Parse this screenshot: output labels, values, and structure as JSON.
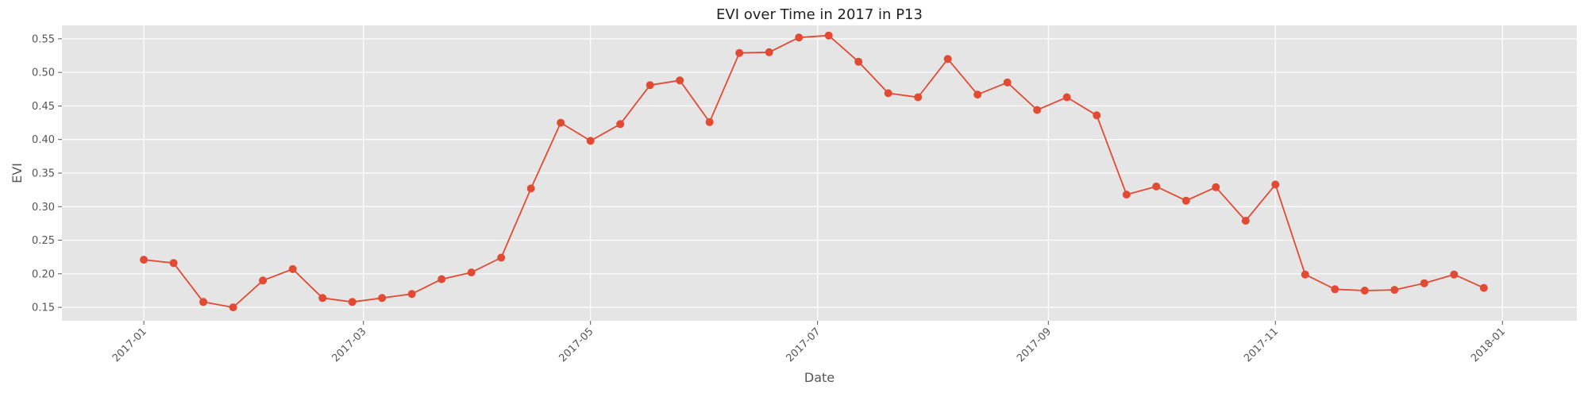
{
  "chart_data": {
    "type": "line",
    "title": "EVI over Time in 2017 in P13",
    "xlabel": "Date",
    "ylabel": "EVI",
    "xlim": [
      "2016-12-10",
      "2018-01-21"
    ],
    "ylim": [
      0.13,
      0.57
    ],
    "grid": true,
    "x_ticks": [
      "2017-01",
      "2017-03",
      "2017-05",
      "2017-07",
      "2017-09",
      "2017-11",
      "2018-01"
    ],
    "y_ticks": [
      "0.15",
      "0.20",
      "0.25",
      "0.30",
      "0.35",
      "0.40",
      "0.45",
      "0.50",
      "0.55"
    ],
    "color": "#E24A33",
    "background": "#E5E5E5",
    "series": [
      {
        "x": [
          "2017-01-01",
          "2017-01-09",
          "2017-01-17",
          "2017-01-25",
          "2017-02-02",
          "2017-02-10",
          "2017-02-18",
          "2017-02-26",
          "2017-03-06",
          "2017-03-14",
          "2017-03-22",
          "2017-03-30",
          "2017-04-07",
          "2017-04-15",
          "2017-04-23",
          "2017-05-01",
          "2017-05-09",
          "2017-05-17",
          "2017-05-25",
          "2017-06-02",
          "2017-06-10",
          "2017-06-18",
          "2017-06-26",
          "2017-07-04",
          "2017-07-12",
          "2017-07-20",
          "2017-07-28",
          "2017-08-05",
          "2017-08-13",
          "2017-08-21",
          "2017-08-29",
          "2017-09-06",
          "2017-09-14",
          "2017-09-22",
          "2017-09-30",
          "2017-10-08",
          "2017-10-16",
          "2017-10-24",
          "2017-11-01",
          "2017-11-09",
          "2017-11-17",
          "2017-11-25",
          "2017-12-03",
          "2017-12-11",
          "2017-12-19",
          "2017-12-27"
        ],
        "y": [
          0.221,
          0.216,
          0.158,
          0.15,
          0.19,
          0.207,
          0.164,
          0.158,
          0.164,
          0.17,
          0.192,
          0.202,
          0.224,
          0.327,
          0.425,
          0.398,
          0.423,
          0.481,
          0.488,
          0.426,
          0.529,
          0.53,
          0.552,
          0.555,
          0.516,
          0.469,
          0.463,
          0.52,
          0.467,
          0.485,
          0.444,
          0.463,
          0.436,
          0.318,
          0.33,
          0.309,
          0.329,
          0.279,
          0.333,
          0.199,
          0.177,
          0.175,
          0.176,
          0.186,
          0.199,
          0.179
        ]
      }
    ]
  }
}
